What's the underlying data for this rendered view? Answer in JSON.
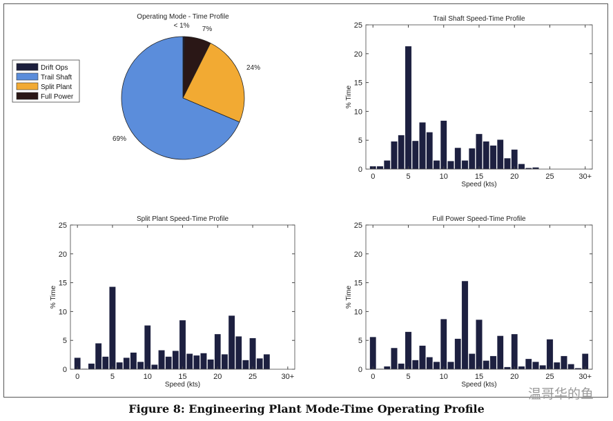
{
  "caption": "Figure 8: Engineering Plant Mode-Time Operating Profile",
  "watermark": "温哥华的鱼",
  "colors": {
    "drift": "#1c1f3d",
    "trail": "#5b8ddb",
    "split": "#f2aa33",
    "full": "#2a1716",
    "bar": "#1d2040"
  },
  "chart_data": [
    {
      "type": "pie",
      "title": "Operating Mode - Time Profile",
      "legend": [
        "Drift Ops",
        "Trail Shaft",
        "Split Plant",
        "Full Power"
      ],
      "legend_placement": "left",
      "slices": [
        {
          "name": "Drift Ops",
          "value": 0.4,
          "label": "< 1%"
        },
        {
          "name": "Full Power",
          "value": 7,
          "label": "7%"
        },
        {
          "name": "Split Plant",
          "value": 24,
          "label": "24%"
        },
        {
          "name": "Trail Shaft",
          "value": 68.6,
          "label": "69%"
        }
      ]
    },
    {
      "type": "bar",
      "title": "Trail Shaft Speed-Time Profile",
      "xlabel": "Speed (kts)",
      "ylabel": "% Time",
      "ylim": [
        0,
        25
      ],
      "xlim": [
        -1,
        31
      ],
      "yticks": [
        "0",
        "5",
        "10",
        "15",
        "20",
        "25"
      ],
      "xticks": [
        "0",
        "5",
        "10",
        "15",
        "20",
        "25",
        "30+"
      ],
      "values": [
        0.5,
        0.5,
        1.5,
        4.8,
        5.9,
        21.3,
        4.9,
        8.1,
        6.4,
        1.5,
        8.4,
        1.4,
        3.7,
        1.5,
        3.6,
        6.1,
        4.8,
        4.1,
        5.1,
        1.9,
        3.4,
        0.9,
        0.2,
        0.3,
        0,
        0,
        0,
        0,
        0,
        0,
        0
      ]
    },
    {
      "type": "bar",
      "title": "Split Plant Speed-Time Profile",
      "xlabel": "Speed (kts)",
      "ylabel": "% Time",
      "ylim": [
        0,
        25
      ],
      "xlim": [
        -1,
        31
      ],
      "yticks": [
        "0",
        "5",
        "10",
        "15",
        "20",
        "25"
      ],
      "xticks": [
        "0",
        "5",
        "10",
        "15",
        "20",
        "25",
        "30+"
      ],
      "values": [
        2.0,
        0.1,
        1.0,
        4.5,
        2.2,
        14.3,
        1.2,
        2.0,
        2.9,
        1.3,
        7.6,
        0.8,
        3.3,
        2.2,
        3.2,
        8.5,
        2.7,
        2.4,
        2.8,
        1.7,
        6.1,
        2.6,
        9.3,
        5.7,
        1.6,
        5.4,
        1.9,
        2.6,
        0,
        0,
        0
      ]
    },
    {
      "type": "bar",
      "title": "Full Power Speed-Time Profile",
      "xlabel": "Speed (kts)",
      "ylabel": "% Time",
      "ylim": [
        0,
        25
      ],
      "xlim": [
        -1,
        31
      ],
      "yticks": [
        "0",
        "5",
        "10",
        "15",
        "20",
        "25"
      ],
      "xticks": [
        "0",
        "5",
        "10",
        "15",
        "20",
        "25",
        "30+"
      ],
      "values": [
        5.6,
        0.1,
        0.5,
        3.7,
        1.0,
        6.5,
        1.6,
        4.1,
        2.1,
        1.3,
        8.7,
        1.3,
        5.3,
        15.3,
        2.7,
        8.6,
        1.5,
        2.3,
        5.8,
        0.4,
        6.1,
        0.5,
        1.8,
        1.3,
        0.7,
        5.2,
        1.2,
        2.3,
        0.9,
        0.2,
        2.7
      ]
    }
  ]
}
